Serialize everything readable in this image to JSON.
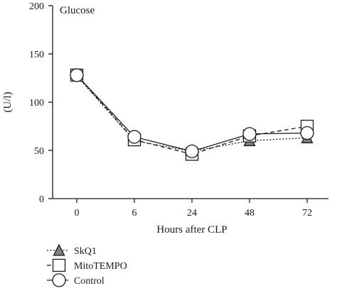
{
  "chart_data": {
    "type": "line",
    "title": "Glucose",
    "xlabel": "Hours after CLP",
    "ylabel": "(U/l)",
    "categories": [
      "0",
      "6",
      "24",
      "48",
      "72"
    ],
    "ylim": [
      0,
      200
    ],
    "yticks": [
      0,
      50,
      100,
      150,
      200
    ],
    "grid": false,
    "legend_position": "bottom-left",
    "series": [
      {
        "name": "SkQ1",
        "values": [
          127,
          60,
          49,
          60,
          63
        ],
        "marker": "triangle",
        "line_style": "dotted",
        "marker_fill": "#7f7f7f"
      },
      {
        "name": "MitoTEMPO",
        "values": [
          128,
          61,
          46,
          65,
          75
        ],
        "marker": "square",
        "line_style": "dashed",
        "marker_fill": "#ffffff"
      },
      {
        "name": "Control",
        "values": [
          128,
          64,
          49,
          67,
          68
        ],
        "marker": "circle",
        "line_style": "solid",
        "marker_fill": "#ffffff"
      }
    ]
  }
}
